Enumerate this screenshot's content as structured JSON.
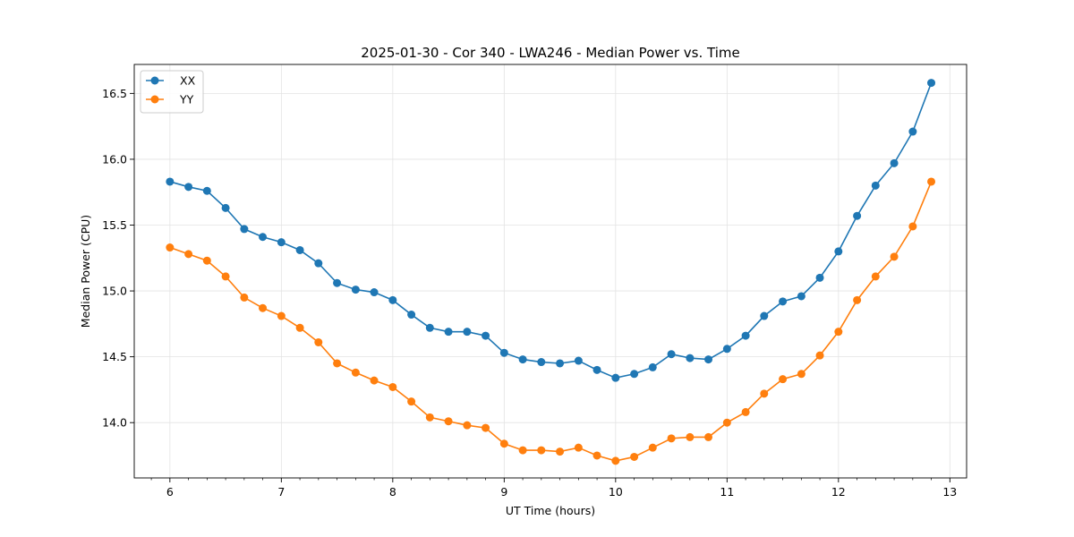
{
  "chart_data": {
    "type": "line",
    "title": "2025-01-30 - Cor 340 - LWA246 - Median Power vs. Time",
    "xlabel": "UT Time (hours)",
    "ylabel": "Median Power (CPU)",
    "xlim": [
      5.68,
      13.15
    ],
    "ylim": [
      13.58,
      16.72
    ],
    "xticks": [
      6,
      7,
      8,
      9,
      10,
      11,
      12,
      13
    ],
    "yticks": [
      14.0,
      14.5,
      15.0,
      15.5,
      16.0,
      16.5
    ],
    "xtick_labels": [
      "6",
      "7",
      "8",
      "9",
      "10",
      "11",
      "12",
      "13"
    ],
    "ytick_labels": [
      "14.0",
      "14.5",
      "15.0",
      "15.5",
      "16.0",
      "16.5"
    ],
    "grid": true,
    "legend_position": "top-left",
    "x": [
      6.0,
      6.167,
      6.333,
      6.5,
      6.667,
      6.833,
      7.0,
      7.167,
      7.333,
      7.5,
      7.667,
      7.833,
      8.0,
      8.167,
      8.333,
      8.5,
      8.667,
      8.833,
      9.0,
      9.167,
      9.333,
      9.5,
      9.667,
      9.833,
      10.0,
      10.167,
      10.333,
      10.5,
      10.667,
      10.833,
      11.0,
      11.167,
      11.333,
      11.5,
      11.667,
      11.833,
      12.0,
      12.167,
      12.333,
      12.5,
      12.667,
      12.833
    ],
    "series": [
      {
        "name": "XX",
        "color": "#1f77b4",
        "values": [
          15.83,
          15.79,
          15.76,
          15.63,
          15.47,
          15.41,
          15.37,
          15.31,
          15.21,
          15.06,
          15.01,
          14.99,
          14.93,
          14.82,
          14.72,
          14.69,
          14.69,
          14.66,
          14.53,
          14.48,
          14.46,
          14.45,
          14.47,
          14.4,
          14.34,
          14.37,
          14.42,
          14.52,
          14.49,
          14.48,
          14.56,
          14.66,
          14.81,
          14.92,
          14.96,
          15.1,
          15.3,
          15.57,
          15.8,
          15.97,
          16.21,
          16.58
        ]
      },
      {
        "name": "YY",
        "color": "#ff7f0e",
        "values": [
          15.33,
          15.28,
          15.23,
          15.11,
          14.95,
          14.87,
          14.81,
          14.72,
          14.61,
          14.45,
          14.38,
          14.32,
          14.27,
          14.16,
          14.04,
          14.01,
          13.98,
          13.96,
          13.84,
          13.79,
          13.79,
          13.78,
          13.81,
          13.75,
          13.71,
          13.74,
          13.81,
          13.88,
          13.89,
          13.89,
          14.0,
          14.08,
          14.22,
          14.33,
          14.37,
          14.51,
          14.69,
          14.93,
          15.11,
          15.26,
          15.49,
          15.83
        ]
      }
    ]
  }
}
